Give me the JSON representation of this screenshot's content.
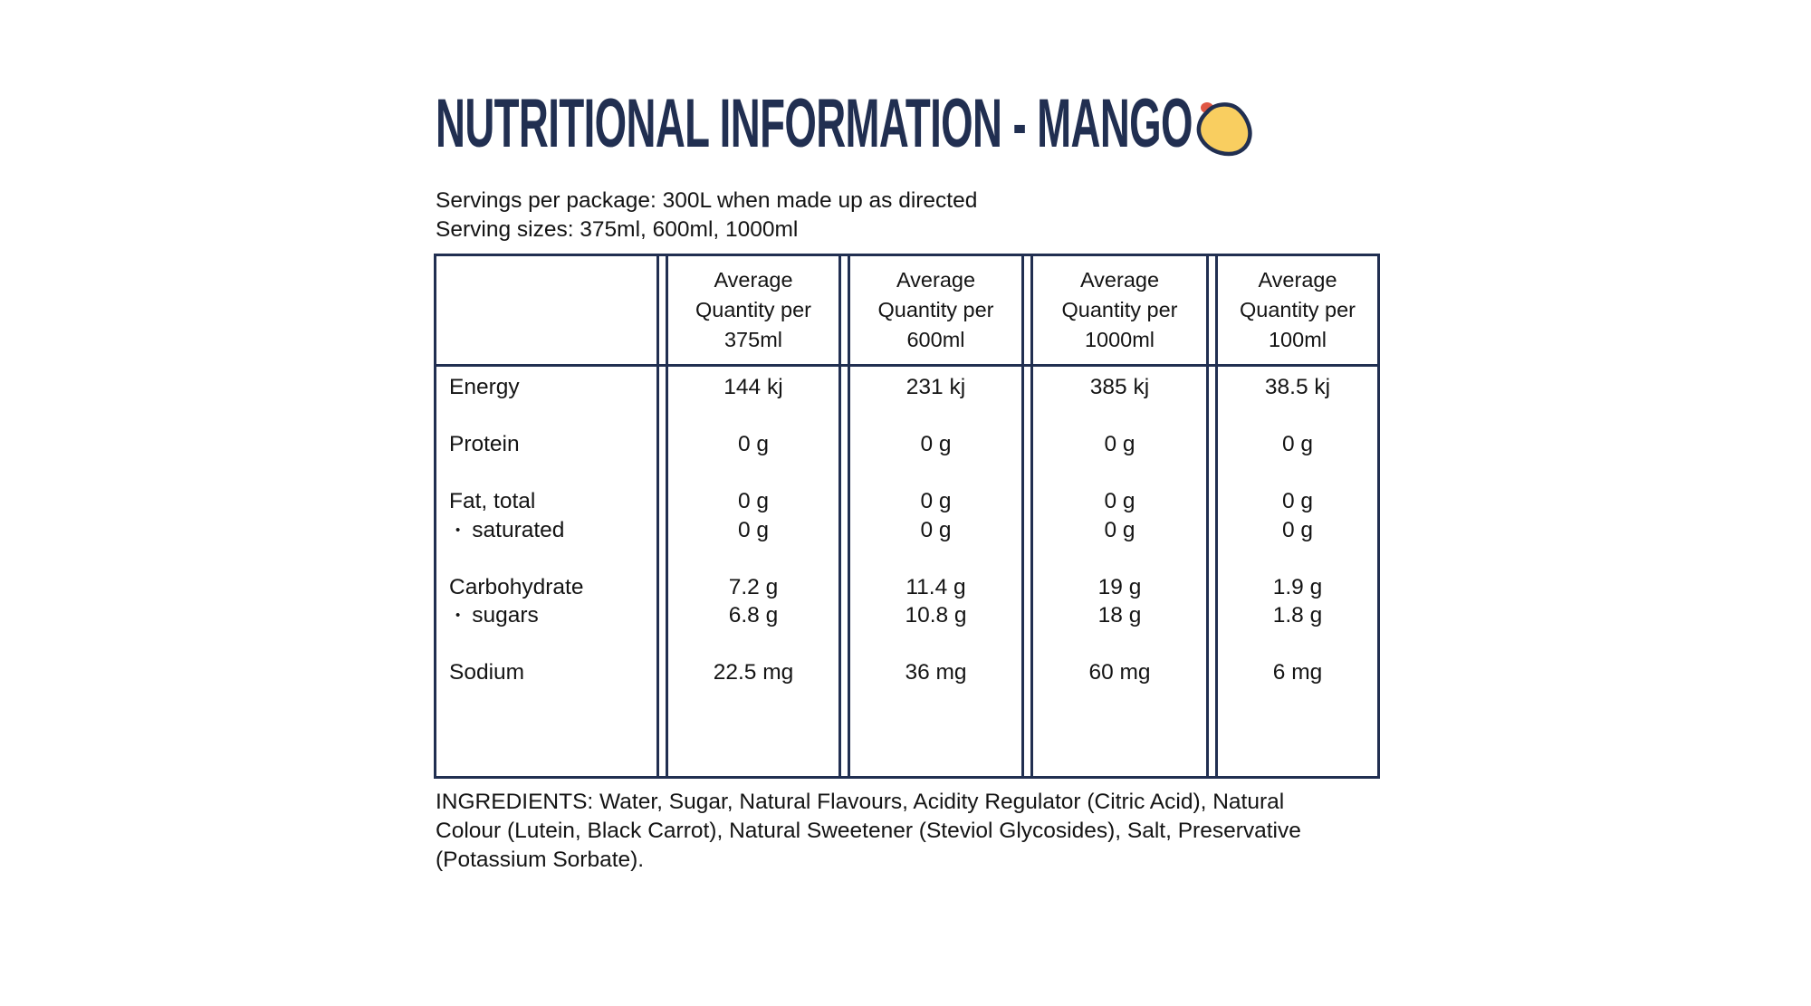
{
  "title": "NUTRITIONAL INFORMATION - MANGO",
  "colors": {
    "navy": "#212F51",
    "text": "#141414",
    "background": "#FFFFFF",
    "mango_fill": "#F9CE60",
    "mango_outline": "#212F51",
    "mango_stem": "#E05744"
  },
  "icons": {
    "mango_icon": "mango-icon"
  },
  "servings": {
    "line1": "Servings per package: 300L when made up as directed",
    "line2": "Serving sizes: 375ml, 600ml, 1000ml"
  },
  "table": {
    "headers": [
      [
        "Average",
        "Quantity per",
        "375ml"
      ],
      [
        "Average",
        "Quantity per",
        "600ml"
      ],
      [
        "Average",
        "Quantity per",
        "1000ml"
      ],
      [
        "Average",
        "Quantity per",
        "100ml"
      ]
    ],
    "rows": [
      {
        "label": "Energy",
        "bullet": false,
        "values": [
          "144 kj",
          "231 kj",
          "385 kj",
          "38.5 kj"
        ],
        "gap_after": true
      },
      {
        "label": "Protein",
        "bullet": false,
        "values": [
          "0 g",
          "0 g",
          "0 g",
          "0 g"
        ],
        "gap_after": true
      },
      {
        "label": "Fat, total",
        "bullet": false,
        "values": [
          "0 g",
          "0 g",
          "0 g",
          "0 g"
        ],
        "gap_after": false
      },
      {
        "label": "saturated",
        "bullet": true,
        "values": [
          "0 g",
          "0 g",
          "0 g",
          "0 g"
        ],
        "gap_after": true
      },
      {
        "label": "Carbohydrate",
        "bullet": false,
        "values": [
          "7.2 g",
          "11.4 g",
          "19 g",
          "1.9 g"
        ],
        "gap_after": false
      },
      {
        "label": "sugars",
        "bullet": true,
        "values": [
          "6.8 g",
          "10.8 g",
          "18 g",
          "1.8 g"
        ],
        "gap_after": true
      },
      {
        "label": "Sodium",
        "bullet": false,
        "values": [
          "22.5 mg",
          "36 mg",
          "60 mg",
          "6 mg"
        ],
        "gap_after": false
      }
    ]
  },
  "ingredients_lines": [
    "INGREDIENTS: Water, Sugar, Natural Flavours, Acidity Regulator (Citric Acid), Natural",
    "Colour (Lutein, Black Carrot), Natural Sweetener (Steviol Glycosides), Salt, Preservative",
    "(Potassium Sorbate)."
  ]
}
